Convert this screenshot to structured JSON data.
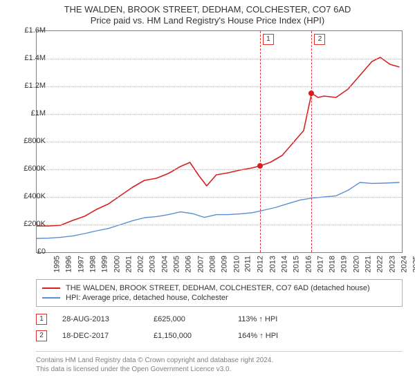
{
  "title_main": "THE WALDEN, BROOK STREET, DEDHAM, COLCHESTER, CO7 6AD",
  "title_sub": "Price paid vs. HM Land Registry's House Price Index (HPI)",
  "chart": {
    "type": "line",
    "background_color": "#ffffff",
    "border_color": "#808080",
    "grid_color": "#b8b8b8",
    "x": {
      "min": 1995,
      "max": 2025.5,
      "tick_step": 1,
      "label_fontsize": 11
    },
    "y": {
      "min": 0,
      "max": 1600000,
      "tick_step": 200000,
      "labels": [
        "£0",
        "£200K",
        "£400K",
        "£600K",
        "£800K",
        "£1M",
        "£1.2M",
        "£1.4M",
        "£1.6M"
      ],
      "label_fontsize": 11
    },
    "series": [
      {
        "name": "price_paid",
        "label": "THE WALDEN, BROOK STREET, DEDHAM, COLCHESTER, CO7 6AD (detached house)",
        "color": "#d81e1e",
        "line_width": 1.6,
        "points": [
          [
            1995.0,
            190000
          ],
          [
            1996.0,
            190000
          ],
          [
            1997.0,
            195000
          ],
          [
            1998.0,
            230000
          ],
          [
            1999.0,
            260000
          ],
          [
            2000.0,
            310000
          ],
          [
            2001.0,
            350000
          ],
          [
            2002.0,
            410000
          ],
          [
            2003.0,
            470000
          ],
          [
            2004.0,
            520000
          ],
          [
            2005.0,
            535000
          ],
          [
            2006.0,
            570000
          ],
          [
            2007.0,
            620000
          ],
          [
            2007.8,
            650000
          ],
          [
            2008.5,
            560000
          ],
          [
            2009.2,
            480000
          ],
          [
            2010.0,
            560000
          ],
          [
            2011.0,
            575000
          ],
          [
            2012.0,
            595000
          ],
          [
            2013.0,
            610000
          ],
          [
            2013.65,
            625000
          ],
          [
            2014.5,
            650000
          ],
          [
            2015.5,
            700000
          ],
          [
            2016.5,
            800000
          ],
          [
            2017.3,
            880000
          ],
          [
            2017.96,
            1150000
          ],
          [
            2018.5,
            1120000
          ],
          [
            2019.0,
            1130000
          ],
          [
            2020.0,
            1120000
          ],
          [
            2021.0,
            1180000
          ],
          [
            2022.0,
            1280000
          ],
          [
            2023.0,
            1380000
          ],
          [
            2023.7,
            1410000
          ],
          [
            2024.5,
            1360000
          ],
          [
            2025.3,
            1340000
          ]
        ]
      },
      {
        "name": "hpi",
        "label": "HPI: Average price, detached house, Colchester",
        "color": "#5a8fcf",
        "line_width": 1.4,
        "points": [
          [
            1995.0,
            100000
          ],
          [
            1996.0,
            102000
          ],
          [
            1997.0,
            108000
          ],
          [
            1998.0,
            118000
          ],
          [
            1999.0,
            135000
          ],
          [
            2000.0,
            155000
          ],
          [
            2001.0,
            172000
          ],
          [
            2002.0,
            200000
          ],
          [
            2003.0,
            228000
          ],
          [
            2004.0,
            250000
          ],
          [
            2005.0,
            258000
          ],
          [
            2006.0,
            272000
          ],
          [
            2007.0,
            292000
          ],
          [
            2008.0,
            280000
          ],
          [
            2009.0,
            252000
          ],
          [
            2010.0,
            272000
          ],
          [
            2011.0,
            272000
          ],
          [
            2012.0,
            278000
          ],
          [
            2013.0,
            286000
          ],
          [
            2014.0,
            305000
          ],
          [
            2015.0,
            325000
          ],
          [
            2016.0,
            352000
          ],
          [
            2017.0,
            378000
          ],
          [
            2018.0,
            392000
          ],
          [
            2019.0,
            400000
          ],
          [
            2020.0,
            408000
          ],
          [
            2021.0,
            448000
          ],
          [
            2022.0,
            505000
          ],
          [
            2023.0,
            498000
          ],
          [
            2024.0,
            500000
          ],
          [
            2025.3,
            505000
          ]
        ]
      }
    ],
    "markers": [
      {
        "x": 2013.65,
        "y": 625000,
        "color": "#d81e1e",
        "size": 8
      },
      {
        "x": 2017.96,
        "y": 1150000,
        "color": "#d81e1e",
        "size": 8
      }
    ],
    "tx_refs": [
      {
        "num": "1",
        "x": 2013.65,
        "line_color": "#e03030"
      },
      {
        "num": "2",
        "x": 2017.96,
        "line_color": "#e03030"
      }
    ]
  },
  "legend": {
    "border_color": "#b0b0b0",
    "items": [
      {
        "color": "#d81e1e",
        "label": "THE WALDEN, BROOK STREET, DEDHAM, COLCHESTER, CO7 6AD (detached house)"
      },
      {
        "color": "#5a8fcf",
        "label": "HPI: Average price, detached house, Colchester"
      }
    ]
  },
  "transactions": [
    {
      "num": "1",
      "date": "28-AUG-2013",
      "price": "£625,000",
      "pct": "113% ↑ HPI"
    },
    {
      "num": "2",
      "date": "18-DEC-2017",
      "price": "£1,150,000",
      "pct": "164% ↑ HPI"
    }
  ],
  "footer": {
    "line1": "Contains HM Land Registry data © Crown copyright and database right 2024.",
    "line2": "This data is licensed under the Open Government Licence v3.0."
  }
}
